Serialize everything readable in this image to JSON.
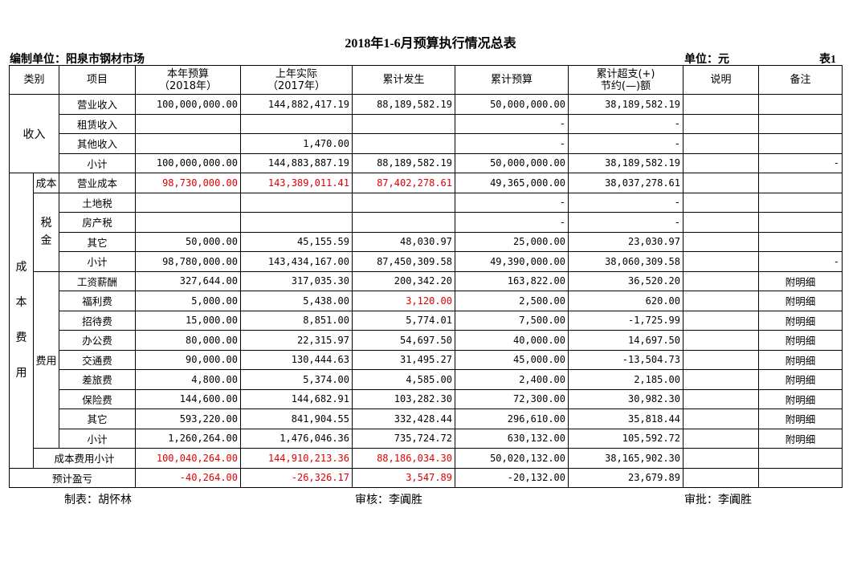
{
  "title": "2018年1-6月预算执行情况总表",
  "header": {
    "org": "编制单位：阳泉市钢材市场",
    "unit": "单位：元",
    "table_no": "表1"
  },
  "columns": {
    "category": "类别",
    "item": "项目",
    "budget_l1": "本年预算",
    "budget_l2": "（2018年）",
    "lastyear_l1": "上年实际",
    "lastyear_l2": "（2017年）",
    "cum_actual": "累计发生",
    "cum_budget": "累计预算",
    "diff_l1": "累计超支(+)",
    "diff_l2": "节约(—)额",
    "note": "说明",
    "remark": "备注"
  },
  "groups": {
    "income": "收入",
    "cost_fee": "成本费用",
    "cost": "成本",
    "tax": "税金",
    "fee": "费用",
    "cost_char1": "成",
    "cost_char2": "本",
    "cost_char3": "费",
    "cost_char4": "用",
    "tax_char1": "税",
    "tax_char2": "金"
  },
  "rows": {
    "r1": {
      "item": "营业收入",
      "b": "100,000,000.00",
      "l": "144,882,417.19",
      "a": "88,189,582.19",
      "cb": "50,000,000.00",
      "d": "38,189,582.19",
      "n": "",
      "r": ""
    },
    "r2": {
      "item": "租赁收入",
      "b": "",
      "l": "",
      "a": "",
      "cb": "-",
      "d": "-",
      "n": "",
      "r": ""
    },
    "r3": {
      "item": "其他收入",
      "b": "",
      "l": "1,470.00",
      "a": "",
      "cb": "-",
      "d": "-",
      "n": "",
      "r": ""
    },
    "r4": {
      "item": "小计",
      "b": "100,000,000.00",
      "l": "144,883,887.19",
      "a": "88,189,582.19",
      "cb": "50,000,000.00",
      "d": "38,189,582.19",
      "n": "",
      "r": "-"
    },
    "r5": {
      "item": "营业成本",
      "b": "98,730,000.00",
      "l": "143,389,011.41",
      "a": "87,402,278.61",
      "cb": "49,365,000.00",
      "d": "38,037,278.61",
      "n": "",
      "r": ""
    },
    "r6": {
      "item": "土地税",
      "b": "",
      "l": "",
      "a": "",
      "cb": "-",
      "d": "-",
      "n": "",
      "r": ""
    },
    "r7": {
      "item": "房产税",
      "b": "",
      "l": "",
      "a": "",
      "cb": "-",
      "d": "-",
      "n": "",
      "r": ""
    },
    "r8": {
      "item": "其它",
      "b": "50,000.00",
      "l": "45,155.59",
      "a": "48,030.97",
      "cb": "25,000.00",
      "d": "23,030.97",
      "n": "",
      "r": ""
    },
    "r9": {
      "item": "小计",
      "b": "98,780,000.00",
      "l": "143,434,167.00",
      "a": "87,450,309.58",
      "cb": "49,390,000.00",
      "d": "38,060,309.58",
      "n": "",
      "r": "-"
    },
    "r10": {
      "item": "工资薪酬",
      "b": "327,644.00",
      "l": "317,035.30",
      "a": "200,342.20",
      "cb": "163,822.00",
      "d": "36,520.20",
      "n": "",
      "r": "附明细"
    },
    "r11": {
      "item": "福利费",
      "b": "5,000.00",
      "l": "5,438.00",
      "a": "3,120.00",
      "cb": "2,500.00",
      "d": "620.00",
      "n": "",
      "r": "附明细"
    },
    "r12": {
      "item": "招待费",
      "b": "15,000.00",
      "l": "8,851.00",
      "a": "5,774.01",
      "cb": "7,500.00",
      "d": "-1,725.99",
      "n": "",
      "r": "附明细"
    },
    "r13": {
      "item": "办公费",
      "b": "80,000.00",
      "l": "22,315.97",
      "a": "54,697.50",
      "cb": "40,000.00",
      "d": "14,697.50",
      "n": "",
      "r": "附明细"
    },
    "r14": {
      "item": "交通费",
      "b": "90,000.00",
      "l": "130,444.63",
      "a": "31,495.27",
      "cb": "45,000.00",
      "d": "-13,504.73",
      "n": "",
      "r": "附明细"
    },
    "r15": {
      "item": "差旅费",
      "b": "4,800.00",
      "l": "5,374.00",
      "a": "4,585.00",
      "cb": "2,400.00",
      "d": "2,185.00",
      "n": "",
      "r": "附明细"
    },
    "r16": {
      "item": "保险费",
      "b": "144,600.00",
      "l": "144,682.91",
      "a": "103,282.30",
      "cb": "72,300.00",
      "d": "30,982.30",
      "n": "",
      "r": "附明细"
    },
    "r17": {
      "item": "其它",
      "b": "593,220.00",
      "l": "841,904.55",
      "a": "332,428.44",
      "cb": "296,610.00",
      "d": "35,818.44",
      "n": "",
      "r": "附明细"
    },
    "r18": {
      "item": "小计",
      "b": "1,260,264.00",
      "l": "1,476,046.36",
      "a": "735,724.72",
      "cb": "630,132.00",
      "d": "105,592.72",
      "n": "",
      "r": "附明细"
    },
    "r19": {
      "item": "成本费用小计",
      "b": "100,040,264.00",
      "l": "144,910,213.36",
      "a": "88,186,034.30",
      "cb": "50,020,132.00",
      "d": "38,165,902.30",
      "n": "",
      "r": ""
    },
    "r20": {
      "item": "预计盈亏",
      "b": "-40,264.00",
      "l": "-26,326.17",
      "a": "3,547.89",
      "cb": "-20,132.00",
      "d": "23,679.89",
      "n": "",
      "r": ""
    }
  },
  "footer": {
    "maker": "制表：胡怀林",
    "reviewer": "审核：李阗胜",
    "approver": "审批：李阗胜"
  },
  "colors": {
    "red_text": "#e00000"
  }
}
